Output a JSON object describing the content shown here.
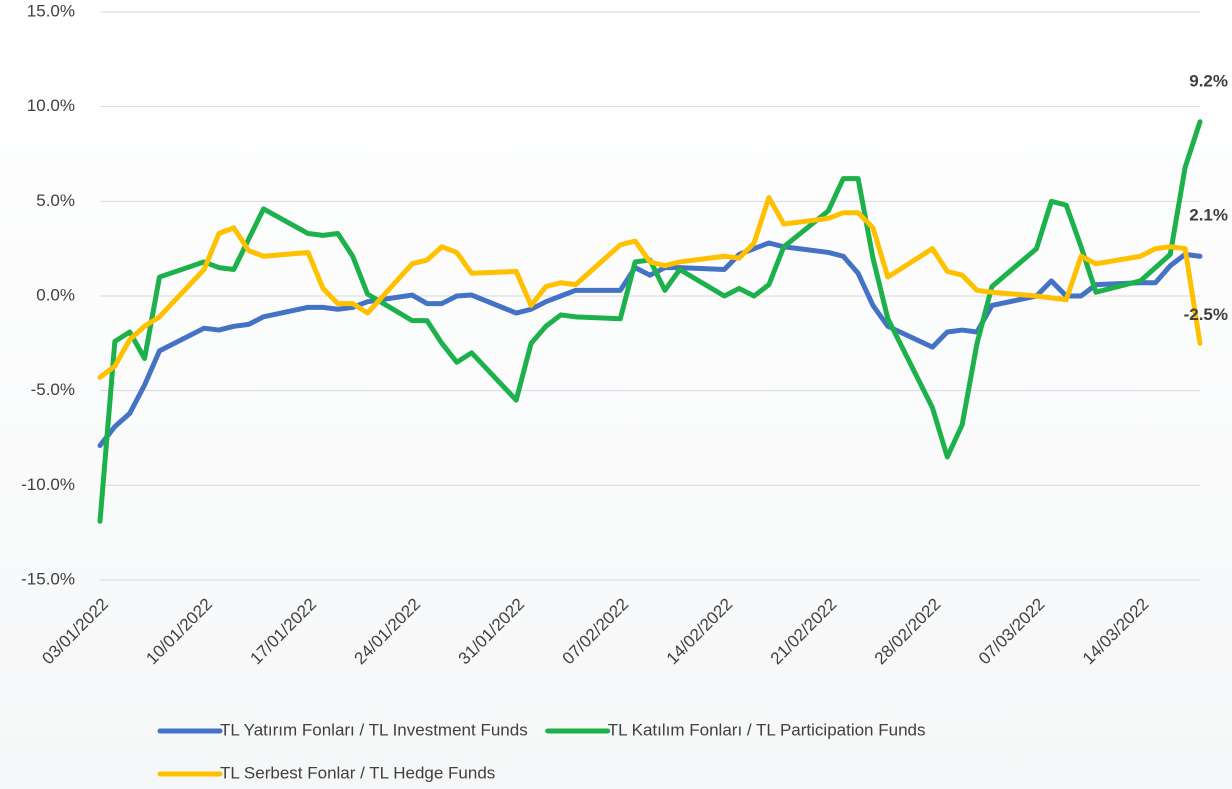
{
  "chart_data": {
    "type": "line",
    "x": [
      "03/01/2022",
      "04/01/2022",
      "05/01/2022",
      "06/01/2022",
      "07/01/2022",
      "10/01/2022",
      "11/01/2022",
      "12/01/2022",
      "13/01/2022",
      "14/01/2022",
      "17/01/2022",
      "18/01/2022",
      "19/01/2022",
      "20/01/2022",
      "21/01/2022",
      "24/01/2022",
      "25/01/2022",
      "26/01/2022",
      "27/01/2022",
      "28/01/2022",
      "31/01/2022",
      "01/02/2022",
      "02/02/2022",
      "03/02/2022",
      "04/02/2022",
      "07/02/2022",
      "08/02/2022",
      "09/02/2022",
      "10/02/2022",
      "11/02/2022",
      "14/02/2022",
      "15/02/2022",
      "16/02/2022",
      "17/02/2022",
      "18/02/2022",
      "21/02/2022",
      "22/02/2022",
      "23/02/2022",
      "24/02/2022",
      "25/02/2022",
      "28/02/2022",
      "01/03/2022",
      "02/03/2022",
      "03/03/2022",
      "04/03/2022",
      "07/03/2022",
      "08/03/2022",
      "09/03/2022",
      "10/03/2022",
      "11/03/2022",
      "14/03/2022",
      "15/03/2022",
      "16/03/2022",
      "17/03/2022",
      "18/03/2022"
    ],
    "xlim": [
      "03/01/2022",
      "18/03/2022"
    ],
    "xticks": [
      "03/01/2022",
      "10/01/2022",
      "17/01/2022",
      "24/01/2022",
      "31/01/2022",
      "07/02/2022",
      "14/02/2022",
      "21/02/2022",
      "28/02/2022",
      "07/03/2022",
      "14/03/2022"
    ],
    "ylim": [
      -15,
      15
    ],
    "yticks": [
      {
        "value": -15,
        "label": "-15.0%"
      },
      {
        "value": -10,
        "label": "-10.0%"
      },
      {
        "value": -5,
        "label": "-5.0%"
      },
      {
        "value": 0,
        "label": "0.0%"
      },
      {
        "value": 5,
        "label": "5.0%"
      },
      {
        "value": 10,
        "label": "10.0%"
      },
      {
        "value": 15,
        "label": "15.0%"
      }
    ],
    "grid": true,
    "legend": "bottom",
    "series": [
      {
        "name": "TL Yatırım Fonları / TL Investment Funds",
        "color": "#4472c4",
        "values": [
          -7.9,
          -6.9,
          -6.2,
          -4.7,
          -2.9,
          -1.7,
          -1.8,
          -1.6,
          -1.5,
          -1.1,
          -0.6,
          -0.6,
          -0.7,
          -0.6,
          -0.3,
          0.05,
          -0.4,
          -0.4,
          0,
          0.05,
          -0.9,
          -0.7,
          -0.3,
          0,
          0.3,
          0.3,
          1.5,
          1.1,
          1.5,
          1.5,
          1.4,
          2.2,
          2.5,
          2.8,
          2.6,
          2.3,
          2.1,
          1.2,
          -0.5,
          -1.6,
          -2.7,
          -1.9,
          -1.8,
          -1.9,
          -0.5,
          0,
          0.8,
          0,
          0,
          0.6,
          0.7,
          0.7,
          1.6,
          2.2,
          2.1
        ],
        "end_label": "2.1%"
      },
      {
        "name": "TL Katılım Fonları / TL Participation Funds",
        "color": "#1db14b",
        "values": [
          -11.9,
          -2.4,
          -1.9,
          -3.3,
          1.0,
          1.8,
          1.5,
          1.4,
          3.0,
          4.6,
          3.3,
          3.2,
          3.3,
          2.1,
          0.1,
          -1.3,
          -1.3,
          -2.5,
          -3.5,
          -3.0,
          -5.5,
          -2.5,
          -1.6,
          -1.0,
          -1.1,
          -1.2,
          1.8,
          1.9,
          0.3,
          1.4,
          0,
          0.4,
          0,
          0.6,
          2.6,
          4.5,
          6.2,
          6.2,
          2.0,
          -1.2,
          -5.9,
          -8.5,
          -6.8,
          -2.5,
          0.5,
          2.5,
          5.0,
          4.8,
          2.6,
          0.2,
          0.8,
          1.5,
          2.2,
          6.8,
          9.2
        ],
        "end_label": "9.2%"
      },
      {
        "name": "TL Serbest Fonlar / TL Hedge Funds",
        "color": "#ffc000",
        "values": [
          -4.3,
          -3.7,
          -2.3,
          -1.6,
          -1.1,
          1.4,
          3.3,
          3.6,
          2.4,
          2.1,
          2.3,
          0.4,
          -0.4,
          -0.4,
          -0.9,
          1.7,
          1.9,
          2.6,
          2.3,
          1.2,
          1.3,
          -0.5,
          0.5,
          0.7,
          0.6,
          2.7,
          2.9,
          1.8,
          1.6,
          1.8,
          2.1,
          2.0,
          2.8,
          5.2,
          3.8,
          4.1,
          4.4,
          4.4,
          3.6,
          1.0,
          2.5,
          1.3,
          1.1,
          0.3,
          0.2,
          0,
          -0.1,
          -0.2,
          2.1,
          1.7,
          2.1,
          2.5,
          2.6,
          2.5,
          -2.5
        ],
        "end_label": "-2.5%"
      }
    ]
  }
}
